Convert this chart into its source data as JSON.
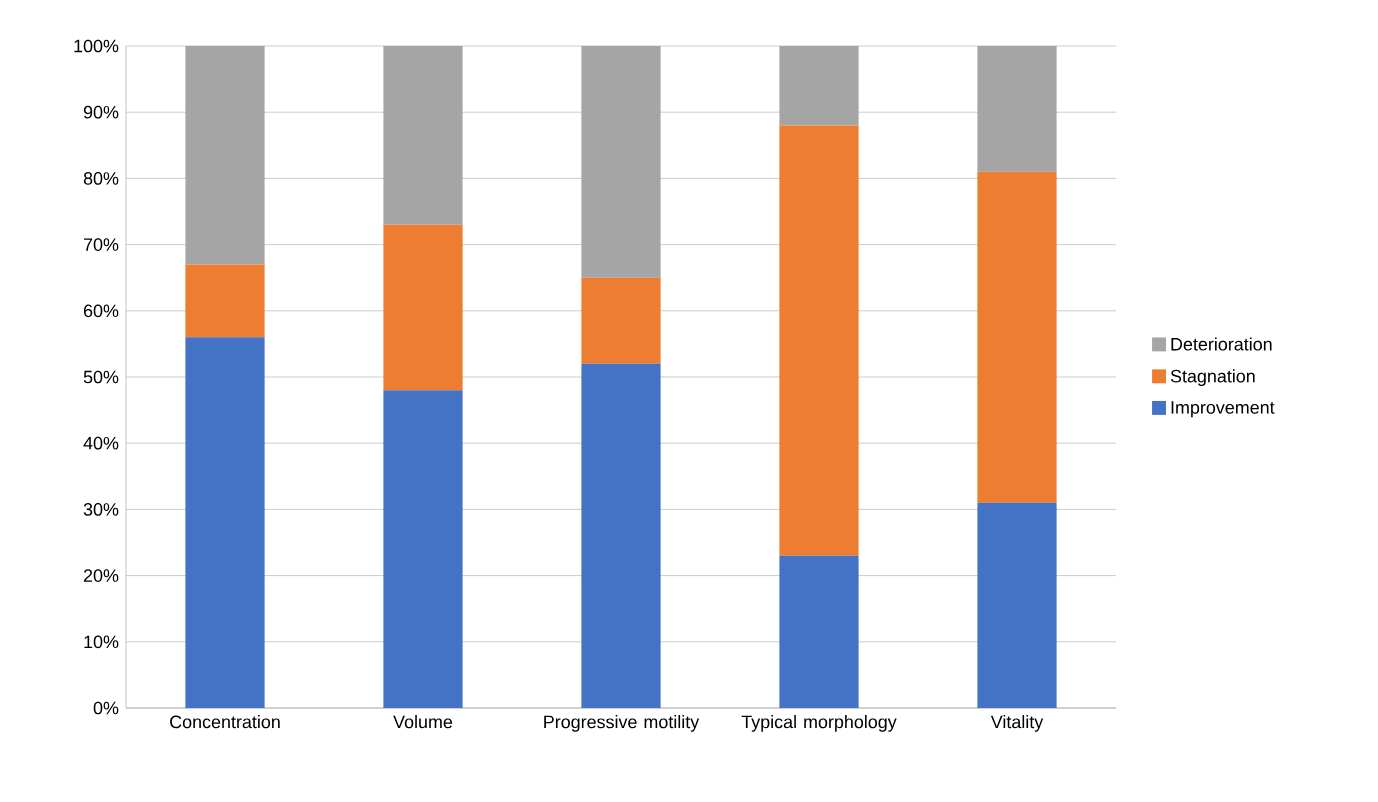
{
  "chart_data": {
    "type": "bar",
    "stacked": true,
    "categories": [
      "Concentration",
      "Volume",
      "Progressive motility",
      "Typical morphology",
      "Vitality"
    ],
    "series": [
      {
        "name": "Improvement",
        "color": "#4472c4",
        "values": [
          56,
          48,
          52,
          23,
          31
        ]
      },
      {
        "name": "Stagnation",
        "color": "#ed7d31",
        "values": [
          11,
          25,
          13,
          65,
          50
        ]
      },
      {
        "name": "Deterioration",
        "color": "#a5a5a5",
        "values": [
          33,
          27,
          35,
          12,
          19
        ]
      }
    ],
    "ylim": [
      0,
      100
    ],
    "yticks": [
      {
        "value": 0,
        "label": "0%"
      },
      {
        "value": 10,
        "label": "10%"
      },
      {
        "value": 20,
        "label": "20%"
      },
      {
        "value": 30,
        "label": "30%"
      },
      {
        "value": 40,
        "label": "40%"
      },
      {
        "value": 50,
        "label": "50%"
      },
      {
        "value": 60,
        "label": "60%"
      },
      {
        "value": 70,
        "label": "70%"
      },
      {
        "value": 80,
        "label": "80%"
      },
      {
        "value": 90,
        "label": "90%"
      },
      {
        "value": 100,
        "label": "100%"
      }
    ],
    "grid": "y",
    "legend": "right"
  }
}
